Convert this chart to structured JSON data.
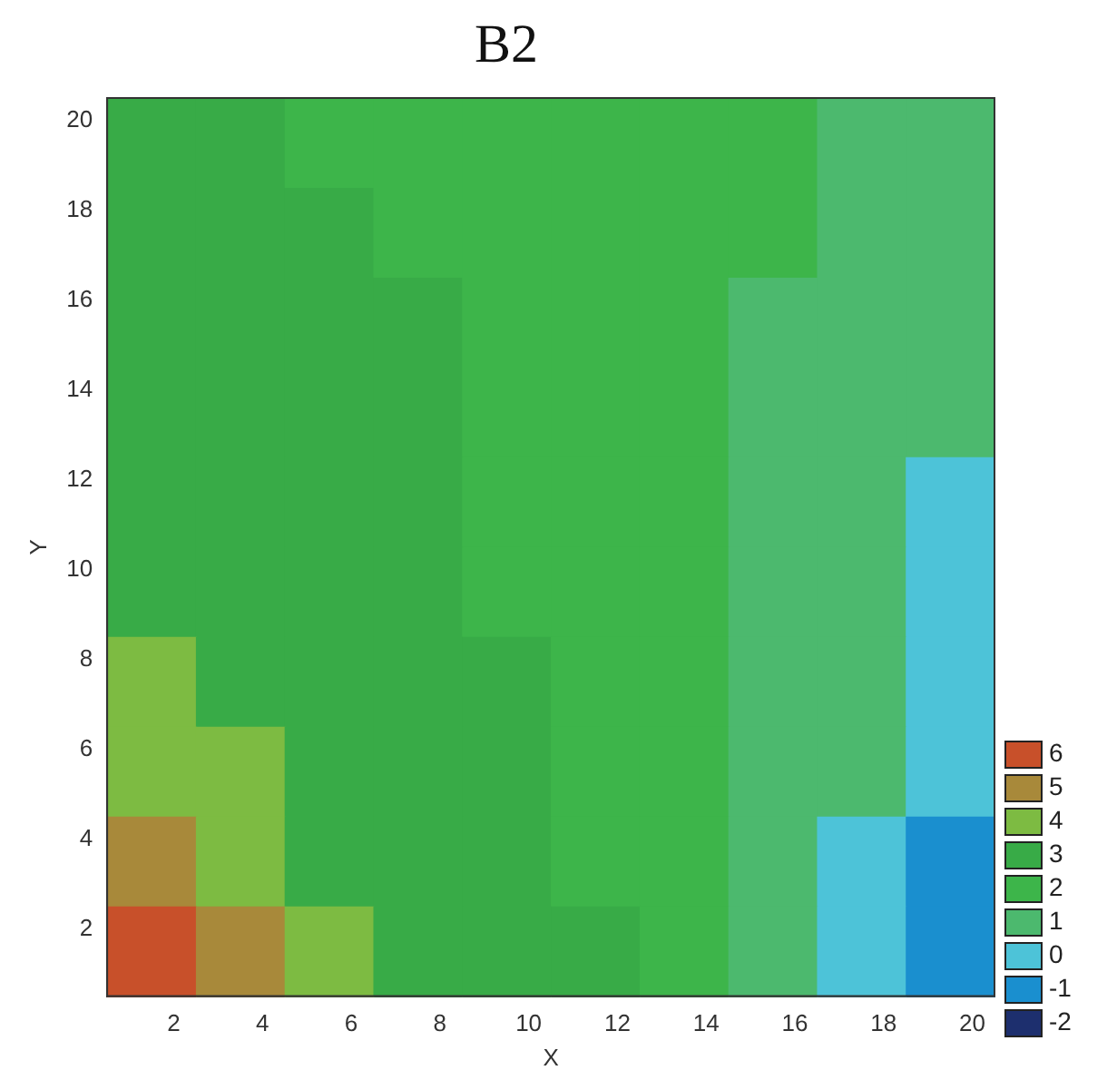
{
  "chart_data": {
    "type": "heatmap",
    "title": "B2",
    "xlabel": "X",
    "ylabel": "Y",
    "x": [
      1.5,
      3.5,
      5.5,
      7.5,
      9.5,
      11.5,
      13.5,
      15.5,
      17.5,
      19.5
    ],
    "y": [
      19.5,
      17.5,
      15.5,
      13.5,
      11.5,
      9.5,
      7.5,
      5.5,
      3.5,
      1.5
    ],
    "cells": [
      [
        3,
        3,
        2,
        2,
        2,
        2,
        2,
        2,
        1,
        1
      ],
      [
        3,
        3,
        3,
        2,
        2,
        2,
        2,
        2,
        1,
        1
      ],
      [
        3,
        3,
        3,
        3,
        2,
        2,
        2,
        1,
        1,
        1
      ],
      [
        3,
        3,
        3,
        3,
        2,
        2,
        2,
        1,
        1,
        1
      ],
      [
        3,
        3,
        3,
        3,
        2,
        2,
        2,
        1,
        1,
        0
      ],
      [
        3,
        3,
        3,
        3,
        2,
        2,
        2,
        1,
        1,
        0
      ],
      [
        4,
        3,
        3,
        3,
        3,
        2,
        2,
        1,
        1,
        0
      ],
      [
        4,
        4,
        3,
        3,
        3,
        2,
        2,
        1,
        1,
        0
      ],
      [
        5,
        4,
        3,
        3,
        3,
        2,
        2,
        1,
        0,
        -1
      ],
      [
        6,
        5,
        4,
        3,
        3,
        3,
        2,
        1,
        0,
        -1
      ]
    ],
    "cticks": [
      -2,
      -1,
      0,
      1,
      2,
      3,
      4,
      5,
      6
    ],
    "colors": [
      "#1d2f6e",
      "#1a8fcf",
      "#4dc3d8",
      "#4cb96e",
      "#3db54a",
      "#38ab47",
      "#7dbb42",
      "#a8893a",
      "#c8502a"
    ],
    "xlim": [
      0.5,
      20.5
    ],
    "ylim": [
      0.5,
      20.5
    ],
    "xticks": [
      2,
      4,
      6,
      8,
      10,
      12,
      14,
      16,
      18,
      20
    ],
    "yticks": [
      2,
      4,
      6,
      8,
      10,
      12,
      14,
      16,
      18,
      20
    ],
    "grid": false
  }
}
